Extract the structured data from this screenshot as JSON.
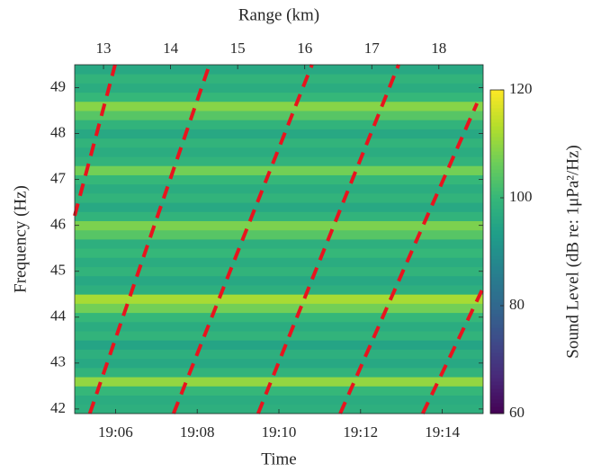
{
  "chart_data": {
    "type": "heatmap",
    "title": "Range (km)",
    "xlabel": "Time",
    "ylabel": "Frequency (Hz)",
    "colorbar_label": "Sound Level (dB re: 1μPa²/Hz)",
    "colormap": "viridis",
    "xlim": [
      1145,
      1155
    ],
    "xticks": [
      {
        "value": 1146,
        "label": "19:06"
      },
      {
        "value": 1148,
        "label": "19:08"
      },
      {
        "value": 1150,
        "label": "19:10"
      },
      {
        "value": 1152,
        "label": "19:12"
      },
      {
        "value": 1154,
        "label": "19:14"
      }
    ],
    "x2lim": [
      12.57,
      18.66
    ],
    "x2ticks": [
      13,
      14,
      15,
      16,
      17,
      18
    ],
    "ylim": [
      41.9,
      49.5
    ],
    "yticks": [
      42,
      43,
      44,
      45,
      46,
      47,
      48,
      49
    ],
    "clim": [
      60,
      120
    ],
    "cticks": [
      60,
      80,
      100,
      120
    ],
    "heatmap": {
      "bins": [
        41.9,
        42.1,
        42.3,
        42.5,
        42.7,
        42.9,
        43.1,
        43.3,
        43.5,
        43.7,
        43.9,
        44.1,
        44.3,
        44.5,
        44.7,
        44.9,
        45.1,
        45.3,
        45.5,
        45.7,
        45.9,
        46.1,
        46.3,
        46.5,
        46.7,
        46.9,
        47.1,
        47.3,
        47.5,
        47.7,
        47.9,
        48.1,
        48.3,
        48.5,
        48.7,
        48.9,
        49.1,
        49.3,
        49.5
      ],
      "values": [
        98,
        97,
        100,
        110,
        99,
        96,
        98,
        95,
        99,
        97,
        100,
        107,
        112,
        98,
        96,
        99,
        97,
        100,
        98,
        104,
        108,
        99,
        96,
        99,
        97,
        100,
        107,
        99,
        97,
        99,
        96,
        99,
        104,
        109,
        100,
        97,
        99,
        96
      ]
    },
    "series": [
      {
        "color": "#e8141e",
        "x": [
          1145.0,
          1145.99
        ],
        "values": [
          46.21,
          49.5
        ]
      },
      {
        "color": "#e8141e",
        "x": [
          1145.37,
          1148.3
        ],
        "values": [
          41.9,
          49.5
        ]
      },
      {
        "color": "#e8141e",
        "x": [
          1147.42,
          1150.81
        ],
        "values": [
          41.9,
          49.5
        ]
      },
      {
        "color": "#e8141e",
        "x": [
          1149.49,
          1152.93
        ],
        "values": [
          41.9,
          49.5
        ]
      },
      {
        "color": "#e8141e",
        "x": [
          1151.5,
          1154.85
        ],
        "values": [
          41.9,
          48.66
        ]
      },
      {
        "color": "#e8141e",
        "x": [
          1153.52,
          1155.0
        ],
        "values": [
          41.9,
          44.64
        ]
      }
    ]
  }
}
